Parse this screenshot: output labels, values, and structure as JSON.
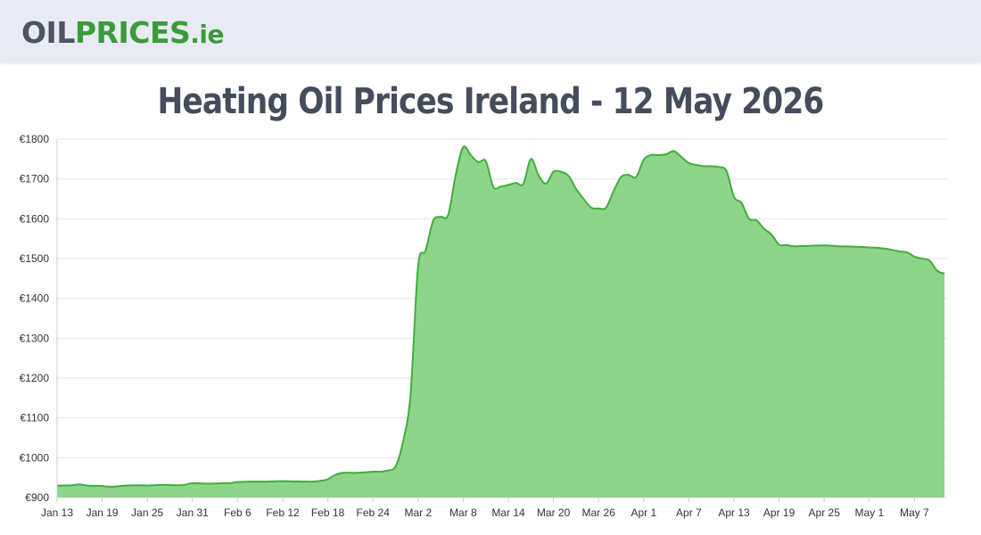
{
  "header": {
    "logo_part1": "OIL",
    "logo_part2": "PRICES",
    "logo_part3": ".ie"
  },
  "page_title": "Heating Oil Prices Ireland - 12 May 2026",
  "colors": {
    "line": "#3fae3c",
    "fill": "#8fd48b",
    "grid": "#e6e6e6",
    "header_bg": "#e8ebf3"
  },
  "chart_data": {
    "type": "area",
    "title": "Heating Oil Prices Ireland - 12 May 2026",
    "xlabel": "",
    "ylabel": "",
    "ylim": [
      900,
      1800
    ],
    "grid": true,
    "y_ticks": [
      "€900",
      "€1000",
      "€1100",
      "€1200",
      "€1300",
      "€1400",
      "€1500",
      "€1600",
      "€1700",
      "€1800"
    ],
    "x_ticks": [
      {
        "date": "2026-01-13",
        "label": "Jan 13"
      },
      {
        "date": "2026-01-19",
        "label": "Jan 19"
      },
      {
        "date": "2026-01-25",
        "label": "Jan 25"
      },
      {
        "date": "2026-01-31",
        "label": "Jan 31"
      },
      {
        "date": "2026-02-06",
        "label": "Feb 6"
      },
      {
        "date": "2026-02-12",
        "label": "Feb 12"
      },
      {
        "date": "2026-02-18",
        "label": "Feb 18"
      },
      {
        "date": "2026-02-24",
        "label": "Feb 24"
      },
      {
        "date": "2026-03-02",
        "label": "Mar 2"
      },
      {
        "date": "2026-03-08",
        "label": "Mar 8"
      },
      {
        "date": "2026-03-14",
        "label": "Mar 14"
      },
      {
        "date": "2026-03-20",
        "label": "Mar 20"
      },
      {
        "date": "2026-03-26",
        "label": "Mar 26"
      },
      {
        "date": "2026-04-01",
        "label": "Apr 1"
      },
      {
        "date": "2026-04-07",
        "label": "Apr 7"
      },
      {
        "date": "2026-04-13",
        "label": "Apr 13"
      },
      {
        "date": "2026-04-19",
        "label": "Apr 19"
      },
      {
        "date": "2026-04-25",
        "label": "Apr 25"
      },
      {
        "date": "2026-05-01",
        "label": "May 1"
      },
      {
        "date": "2026-05-07",
        "label": "May 7"
      }
    ],
    "series": [
      {
        "points": [
          [
            "2026-01-13",
            930
          ],
          [
            "2026-01-15",
            931
          ],
          [
            "2026-01-16",
            933
          ],
          [
            "2026-01-17",
            930
          ],
          [
            "2026-01-19",
            929
          ],
          [
            "2026-01-20",
            927
          ],
          [
            "2026-01-21",
            928
          ],
          [
            "2026-01-22",
            930
          ],
          [
            "2026-01-24",
            931
          ],
          [
            "2026-01-25",
            930
          ],
          [
            "2026-01-27",
            932
          ],
          [
            "2026-01-29",
            931
          ],
          [
            "2026-01-30",
            932
          ],
          [
            "2026-01-31",
            936
          ],
          [
            "2026-02-02",
            935
          ],
          [
            "2026-02-04",
            936
          ],
          [
            "2026-02-05",
            936
          ],
          [
            "2026-02-06",
            939
          ],
          [
            "2026-02-08",
            940
          ],
          [
            "2026-02-10",
            940
          ],
          [
            "2026-02-11",
            941
          ],
          [
            "2026-02-13",
            941
          ],
          [
            "2026-02-15",
            940
          ],
          [
            "2026-02-16",
            940
          ],
          [
            "2026-02-17",
            942
          ],
          [
            "2026-02-18",
            946
          ],
          [
            "2026-02-19",
            957
          ],
          [
            "2026-02-20",
            962
          ],
          [
            "2026-02-22",
            962
          ],
          [
            "2026-02-24",
            965
          ],
          [
            "2026-02-25",
            965
          ],
          [
            "2026-02-26",
            968
          ],
          [
            "2026-02-27",
            978
          ],
          [
            "2026-02-28",
            1040
          ],
          [
            "2026-03-01",
            1160
          ],
          [
            "2026-03-02",
            1480
          ],
          [
            "2026-03-03",
            1520
          ],
          [
            "2026-03-04",
            1595
          ],
          [
            "2026-03-05",
            1605
          ],
          [
            "2026-03-06",
            1610
          ],
          [
            "2026-03-07",
            1710
          ],
          [
            "2026-03-08",
            1780
          ],
          [
            "2026-03-09",
            1760
          ],
          [
            "2026-03-10",
            1742
          ],
          [
            "2026-03-11",
            1745
          ],
          [
            "2026-03-12",
            1680
          ],
          [
            "2026-03-13",
            1681
          ],
          [
            "2026-03-14",
            1685
          ],
          [
            "2026-03-15",
            1690
          ],
          [
            "2026-03-16",
            1688
          ],
          [
            "2026-03-17",
            1750
          ],
          [
            "2026-03-18",
            1710
          ],
          [
            "2026-03-19",
            1688
          ],
          [
            "2026-03-20",
            1718
          ],
          [
            "2026-03-21",
            1718
          ],
          [
            "2026-03-22",
            1708
          ],
          [
            "2026-03-23",
            1675
          ],
          [
            "2026-03-24",
            1650
          ],
          [
            "2026-03-25",
            1628
          ],
          [
            "2026-03-26",
            1626
          ],
          [
            "2026-03-27",
            1628
          ],
          [
            "2026-03-28",
            1670
          ],
          [
            "2026-03-29",
            1705
          ],
          [
            "2026-03-30",
            1710
          ],
          [
            "2026-03-31",
            1705
          ],
          [
            "2026-04-01",
            1748
          ],
          [
            "2026-04-02",
            1760
          ],
          [
            "2026-04-03",
            1760
          ],
          [
            "2026-04-04",
            1762
          ],
          [
            "2026-04-05",
            1770
          ],
          [
            "2026-04-06",
            1755
          ],
          [
            "2026-04-07",
            1740
          ],
          [
            "2026-04-08",
            1735
          ],
          [
            "2026-04-09",
            1732
          ],
          [
            "2026-04-10",
            1732
          ],
          [
            "2026-04-11",
            1730
          ],
          [
            "2026-04-12",
            1720
          ],
          [
            "2026-04-13",
            1655
          ],
          [
            "2026-04-14",
            1640
          ],
          [
            "2026-04-15",
            1600
          ],
          [
            "2026-04-16",
            1596
          ],
          [
            "2026-04-17",
            1575
          ],
          [
            "2026-04-18",
            1560
          ],
          [
            "2026-04-19",
            1535
          ],
          [
            "2026-04-20",
            1534
          ],
          [
            "2026-04-21",
            1531
          ],
          [
            "2026-04-23",
            1532
          ],
          [
            "2026-04-25",
            1533
          ],
          [
            "2026-04-27",
            1531
          ],
          [
            "2026-04-29",
            1530
          ],
          [
            "2026-05-01",
            1528
          ],
          [
            "2026-05-02",
            1527
          ],
          [
            "2026-05-03",
            1525
          ],
          [
            "2026-05-04",
            1522
          ],
          [
            "2026-05-05",
            1518
          ],
          [
            "2026-05-06",
            1516
          ],
          [
            "2026-05-07",
            1505
          ],
          [
            "2026-05-08",
            1500
          ],
          [
            "2026-05-09",
            1495
          ],
          [
            "2026-05-10",
            1470
          ],
          [
            "2026-05-11",
            1462
          ]
        ]
      }
    ]
  }
}
